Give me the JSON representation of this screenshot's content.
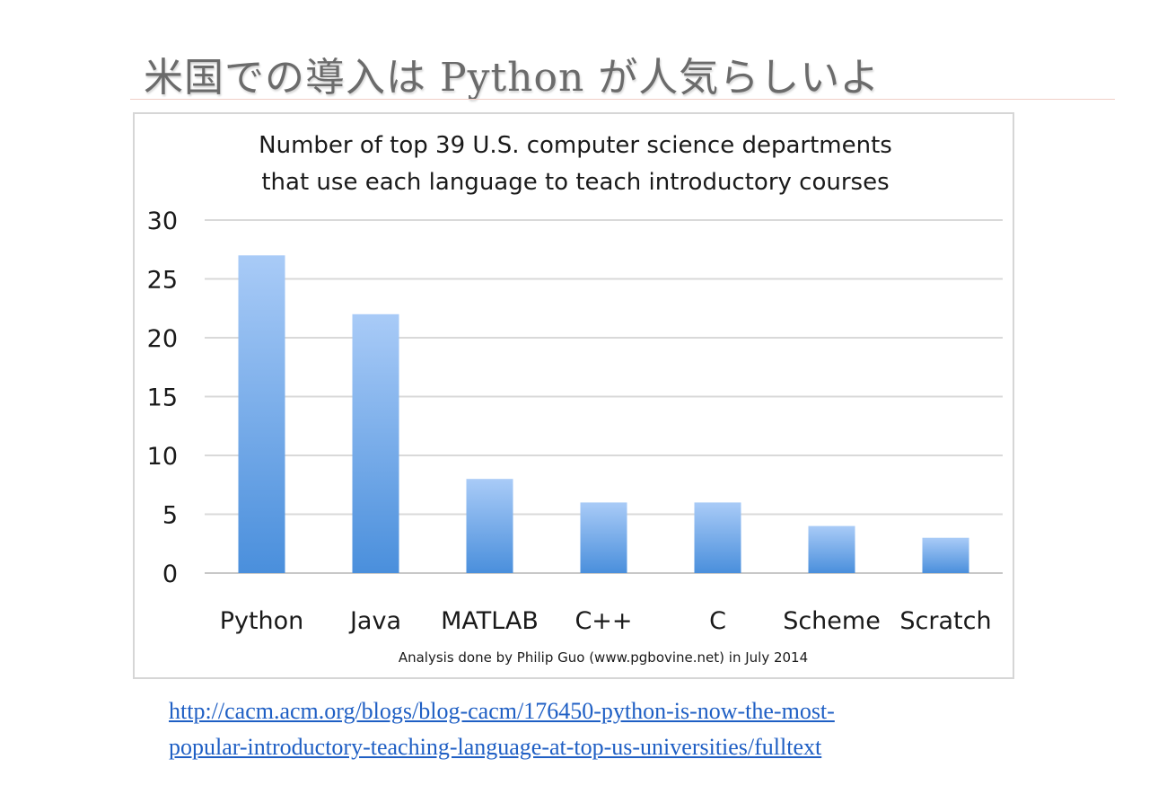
{
  "slide": {
    "title": "米国での導入は Python が人気らしいよ"
  },
  "chart_data": {
    "type": "bar",
    "title": "Number of top 39 U.S. computer science departments",
    "subtitle": "that use each language to teach introductory courses",
    "xlabel": "",
    "ylabel": "",
    "categories": [
      "Python",
      "Java",
      "MATLAB",
      "C++",
      "C",
      "Scheme",
      "Scratch"
    ],
    "values": [
      27,
      22,
      8,
      6,
      6,
      4,
      3
    ],
    "ylim": [
      0,
      30
    ],
    "yticks": [
      "0",
      "5",
      "10",
      "15",
      "20",
      "25",
      "30"
    ],
    "grid": true,
    "annotation": "Analysis done by Philip Guo (www.pgbovine.net) in July 2014",
    "colors": {
      "bar_top": "#a9cbf7",
      "bar_bottom": "#4a8fdc",
      "grid": "#d9d9d9",
      "text": "#1a1a1a"
    }
  },
  "source": {
    "url_line1": "http://cacm.acm.org/blogs/blog-cacm/176450-python-is-now-the-most-",
    "url_line2": "popular-introductory-teaching-language-at-top-us-universities/fulltext"
  }
}
